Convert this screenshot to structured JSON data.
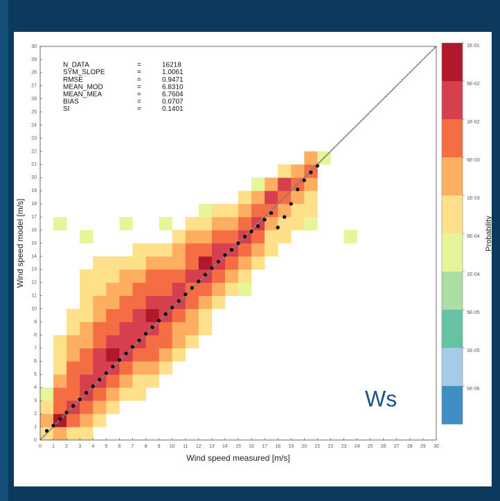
{
  "chart_data": {
    "type": "heatmap",
    "x_label": "Wind speed measured [m/s]",
    "y_label": "Wind speed model [m/s]",
    "annotation": "Ws",
    "xlim": [
      0,
      30
    ],
    "ylim": [
      0,
      30
    ],
    "xticks": [
      0,
      1,
      2,
      3,
      4,
      5,
      6,
      7,
      8,
      9,
      10,
      11,
      12,
      13,
      14,
      15,
      16,
      17,
      18,
      19,
      20,
      21,
      22,
      23,
      24,
      25,
      26,
      27,
      28,
      29,
      30
    ],
    "yticks": [
      0,
      1,
      2,
      3,
      4,
      5,
      6,
      7,
      8,
      9,
      10,
      11,
      12,
      13,
      14,
      15,
      16,
      17,
      18,
      19,
      20,
      21,
      22,
      23,
      24,
      25,
      26,
      27,
      28,
      29,
      30
    ],
    "stats_separator": "=",
    "stats": [
      {
        "name": "N_DATA",
        "value": "16218"
      },
      {
        "name": "SYM_SLOPE",
        "value": "1.0061"
      },
      {
        "name": "RMSE",
        "value": "0.9471"
      },
      {
        "name": "MEAN_MOD",
        "value": "6.8310"
      },
      {
        "name": "MEAN_MEA",
        "value": "6.7604"
      },
      {
        "name": "BIAS",
        "value": "0.0707"
      },
      {
        "name": "SI",
        "value": "0.1401"
      }
    ],
    "colorbar": {
      "label": "Probability",
      "ticks": [
        {
          "value": 0.1,
          "label": "1E-01"
        },
        {
          "value": 0.05,
          "label": "5E-02"
        },
        {
          "value": 0.01,
          "label": "1E-02"
        },
        {
          "value": 0.005,
          "label": "5E-03"
        },
        {
          "value": 0.001,
          "label": "1E-03"
        },
        {
          "value": 0.0005,
          "label": "5E-04"
        },
        {
          "value": 0.0001,
          "label": "1E-04"
        },
        {
          "value": 5e-05,
          "label": "5E-05"
        },
        {
          "value": 1e-05,
          "label": "1E-05"
        },
        {
          "value": 5e-06,
          "label": "5E-06"
        }
      ],
      "colors": [
        "#b2182b",
        "#d6404e",
        "#f46d43",
        "#fdae61",
        "#fee08b",
        "#e6f598",
        "#abdda4",
        "#66c2a5",
        "#a6cbe8",
        "#3f8fc4"
      ]
    },
    "cells": [
      [
        0,
        0,
        0.0007
      ],
      [
        0,
        1,
        0.003
      ],
      [
        0,
        2,
        0.0007
      ],
      [
        0,
        3,
        0.0003
      ],
      [
        1,
        0,
        0.003
      ],
      [
        1,
        1,
        0.07
      ],
      [
        1,
        2,
        0.007
      ],
      [
        1,
        3,
        0.007
      ],
      [
        1,
        4,
        0.003
      ],
      [
        1,
        5,
        0.0007
      ],
      [
        1,
        6,
        0.0007
      ],
      [
        1,
        7,
        0.0007
      ],
      [
        1,
        16,
        0.0003
      ],
      [
        2,
        0,
        0.0007
      ],
      [
        2,
        1,
        0.007
      ],
      [
        2,
        2,
        0.03
      ],
      [
        2,
        3,
        0.007
      ],
      [
        2,
        4,
        0.007
      ],
      [
        2,
        5,
        0.007
      ],
      [
        2,
        6,
        0.003
      ],
      [
        2,
        7,
        0.003
      ],
      [
        2,
        8,
        0.0007
      ],
      [
        2,
        9,
        0.0007
      ],
      [
        3,
        0,
        0.0007
      ],
      [
        3,
        1,
        0.003
      ],
      [
        3,
        2,
        0.007
      ],
      [
        3,
        3,
        0.03
      ],
      [
        3,
        4,
        0.03
      ],
      [
        3,
        5,
        0.007
      ],
      [
        3,
        6,
        0.007
      ],
      [
        3,
        7,
        0.003
      ],
      [
        3,
        8,
        0.003
      ],
      [
        3,
        9,
        0.0007
      ],
      [
        3,
        10,
        0.0007
      ],
      [
        3,
        11,
        0.0007
      ],
      [
        3,
        12,
        0.0007
      ],
      [
        3,
        15,
        0.0003
      ],
      [
        4,
        1,
        0.0007
      ],
      [
        4,
        2,
        0.003
      ],
      [
        4,
        3,
        0.007
      ],
      [
        4,
        4,
        0.03
      ],
      [
        4,
        5,
        0.03
      ],
      [
        4,
        6,
        0.03
      ],
      [
        4,
        7,
        0.007
      ],
      [
        4,
        8,
        0.007
      ],
      [
        4,
        9,
        0.003
      ],
      [
        4,
        10,
        0.003
      ],
      [
        4,
        11,
        0.0007
      ],
      [
        4,
        12,
        0.0007
      ],
      [
        4,
        13,
        0.0007
      ],
      [
        5,
        2,
        0.0007
      ],
      [
        5,
        3,
        0.003
      ],
      [
        5,
        4,
        0.007
      ],
      [
        5,
        5,
        0.03
      ],
      [
        5,
        6,
        0.07
      ],
      [
        5,
        7,
        0.03
      ],
      [
        5,
        8,
        0.007
      ],
      [
        5,
        9,
        0.007
      ],
      [
        5,
        10,
        0.003
      ],
      [
        5,
        11,
        0.003
      ],
      [
        5,
        12,
        0.0007
      ],
      [
        5,
        13,
        0.0007
      ],
      [
        6,
        3,
        0.0007
      ],
      [
        6,
        4,
        0.003
      ],
      [
        6,
        5,
        0.007
      ],
      [
        6,
        6,
        0.03
      ],
      [
        6,
        7,
        0.03
      ],
      [
        6,
        8,
        0.03
      ],
      [
        6,
        9,
        0.007
      ],
      [
        6,
        10,
        0.007
      ],
      [
        6,
        11,
        0.003
      ],
      [
        6,
        12,
        0.003
      ],
      [
        6,
        13,
        0.0007
      ],
      [
        6,
        16,
        0.0003
      ],
      [
        7,
        3,
        0.0007
      ],
      [
        7,
        4,
        0.0007
      ],
      [
        7,
        5,
        0.003
      ],
      [
        7,
        6,
        0.007
      ],
      [
        7,
        7,
        0.03
      ],
      [
        7,
        8,
        0.03
      ],
      [
        7,
        9,
        0.03
      ],
      [
        7,
        10,
        0.007
      ],
      [
        7,
        11,
        0.007
      ],
      [
        7,
        12,
        0.003
      ],
      [
        7,
        13,
        0.0007
      ],
      [
        7,
        14,
        0.0007
      ],
      [
        8,
        4,
        0.0007
      ],
      [
        8,
        5,
        0.003
      ],
      [
        8,
        6,
        0.007
      ],
      [
        8,
        7,
        0.007
      ],
      [
        8,
        8,
        0.03
      ],
      [
        8,
        9,
        0.07
      ],
      [
        8,
        10,
        0.03
      ],
      [
        8,
        11,
        0.007
      ],
      [
        8,
        12,
        0.007
      ],
      [
        8,
        13,
        0.003
      ],
      [
        8,
        14,
        0.0007
      ],
      [
        9,
        5,
        0.0007
      ],
      [
        9,
        6,
        0.003
      ],
      [
        9,
        7,
        0.007
      ],
      [
        9,
        8,
        0.007
      ],
      [
        9,
        9,
        0.03
      ],
      [
        9,
        10,
        0.03
      ],
      [
        9,
        11,
        0.007
      ],
      [
        9,
        12,
        0.007
      ],
      [
        9,
        13,
        0.003
      ],
      [
        9,
        14,
        0.0007
      ],
      [
        9,
        16,
        0.0003
      ],
      [
        10,
        6,
        0.0007
      ],
      [
        10,
        7,
        0.003
      ],
      [
        10,
        8,
        0.003
      ],
      [
        10,
        9,
        0.007
      ],
      [
        10,
        10,
        0.03
      ],
      [
        10,
        11,
        0.03
      ],
      [
        10,
        12,
        0.007
      ],
      [
        10,
        13,
        0.003
      ],
      [
        10,
        14,
        0.003
      ],
      [
        10,
        15,
        0.0007
      ],
      [
        11,
        7,
        0.0007
      ],
      [
        11,
        8,
        0.003
      ],
      [
        11,
        9,
        0.003
      ],
      [
        11,
        10,
        0.007
      ],
      [
        11,
        11,
        0.007
      ],
      [
        11,
        12,
        0.03
      ],
      [
        11,
        13,
        0.007
      ],
      [
        11,
        14,
        0.007
      ],
      [
        11,
        15,
        0.003
      ],
      [
        11,
        16,
        0.0007
      ],
      [
        12,
        8,
        0.0007
      ],
      [
        12,
        9,
        0.0007
      ],
      [
        12,
        10,
        0.003
      ],
      [
        12,
        11,
        0.007
      ],
      [
        12,
        12,
        0.03
      ],
      [
        12,
        13,
        0.07
      ],
      [
        12,
        14,
        0.007
      ],
      [
        12,
        15,
        0.003
      ],
      [
        12,
        16,
        0.0007
      ],
      [
        12,
        17,
        0.0003
      ],
      [
        13,
        10,
        0.0007
      ],
      [
        13,
        11,
        0.003
      ],
      [
        13,
        12,
        0.007
      ],
      [
        13,
        13,
        0.03
      ],
      [
        13,
        14,
        0.03
      ],
      [
        13,
        15,
        0.007
      ],
      [
        13,
        16,
        0.003
      ],
      [
        13,
        17,
        0.0007
      ],
      [
        14,
        11,
        0.0007
      ],
      [
        14,
        12,
        0.003
      ],
      [
        14,
        13,
        0.007
      ],
      [
        14,
        14,
        0.03
      ],
      [
        14,
        15,
        0.007
      ],
      [
        14,
        16,
        0.003
      ],
      [
        14,
        17,
        0.0007
      ],
      [
        15,
        11,
        0.0003
      ],
      [
        15,
        12,
        0.0007
      ],
      [
        15,
        13,
        0.003
      ],
      [
        15,
        14,
        0.007
      ],
      [
        15,
        15,
        0.03
      ],
      [
        15,
        16,
        0.007
      ],
      [
        15,
        17,
        0.003
      ],
      [
        15,
        18,
        0.0007
      ],
      [
        16,
        13,
        0.0007
      ],
      [
        16,
        14,
        0.003
      ],
      [
        16,
        15,
        0.007
      ],
      [
        16,
        16,
        0.03
      ],
      [
        16,
        17,
        0.007
      ],
      [
        16,
        18,
        0.003
      ],
      [
        16,
        19,
        0.0003
      ],
      [
        17,
        14,
        0.0007
      ],
      [
        17,
        15,
        0.0007
      ],
      [
        17,
        16,
        0.003
      ],
      [
        17,
        17,
        0.007
      ],
      [
        17,
        18,
        0.03
      ],
      [
        17,
        19,
        0.003
      ],
      [
        18,
        15,
        0.0007
      ],
      [
        18,
        16,
        0.0007
      ],
      [
        18,
        17,
        0.003
      ],
      [
        18,
        18,
        0.007
      ],
      [
        18,
        19,
        0.03
      ],
      [
        18,
        20,
        0.0007
      ],
      [
        19,
        16,
        0.0007
      ],
      [
        19,
        17,
        0.0007
      ],
      [
        19,
        18,
        0.003
      ],
      [
        19,
        19,
        0.007
      ],
      [
        19,
        20,
        0.003
      ],
      [
        20,
        16,
        0.0003
      ],
      [
        20,
        17,
        0.0007
      ],
      [
        20,
        18,
        0.0007
      ],
      [
        20,
        19,
        0.003
      ],
      [
        20,
        20,
        0.007
      ],
      [
        20,
        21,
        0.003
      ],
      [
        21,
        21,
        0.0003
      ],
      [
        23,
        15,
        0.0003
      ]
    ],
    "means": {
      "x": [
        0.5,
        1,
        1.5,
        2,
        2.5,
        3,
        3.5,
        4,
        4.5,
        5,
        5.5,
        6,
        6.5,
        7,
        7.5,
        8,
        8.5,
        9,
        9.5,
        10,
        10.5,
        11,
        11.5,
        12,
        12.5,
        13,
        13.5,
        14,
        14.5,
        15,
        15.5,
        16,
        16.5,
        17,
        17.5,
        18,
        18.5,
        19,
        19.5,
        20,
        20.5,
        21
      ],
      "y": [
        0.7,
        1.1,
        1.6,
        2.1,
        2.6,
        3.1,
        3.6,
        4.1,
        4.6,
        5.1,
        5.6,
        6.1,
        6.6,
        7.1,
        7.6,
        8.1,
        8.6,
        9.1,
        9.6,
        10.1,
        10.6,
        11.1,
        11.6,
        12.1,
        12.6,
        13.1,
        13.6,
        14.1,
        14.5,
        15,
        15.5,
        15.9,
        16.3,
        16.8,
        17.3,
        16.2,
        17,
        18,
        19.1,
        19.8,
        20.4,
        20.9
      ]
    }
  }
}
